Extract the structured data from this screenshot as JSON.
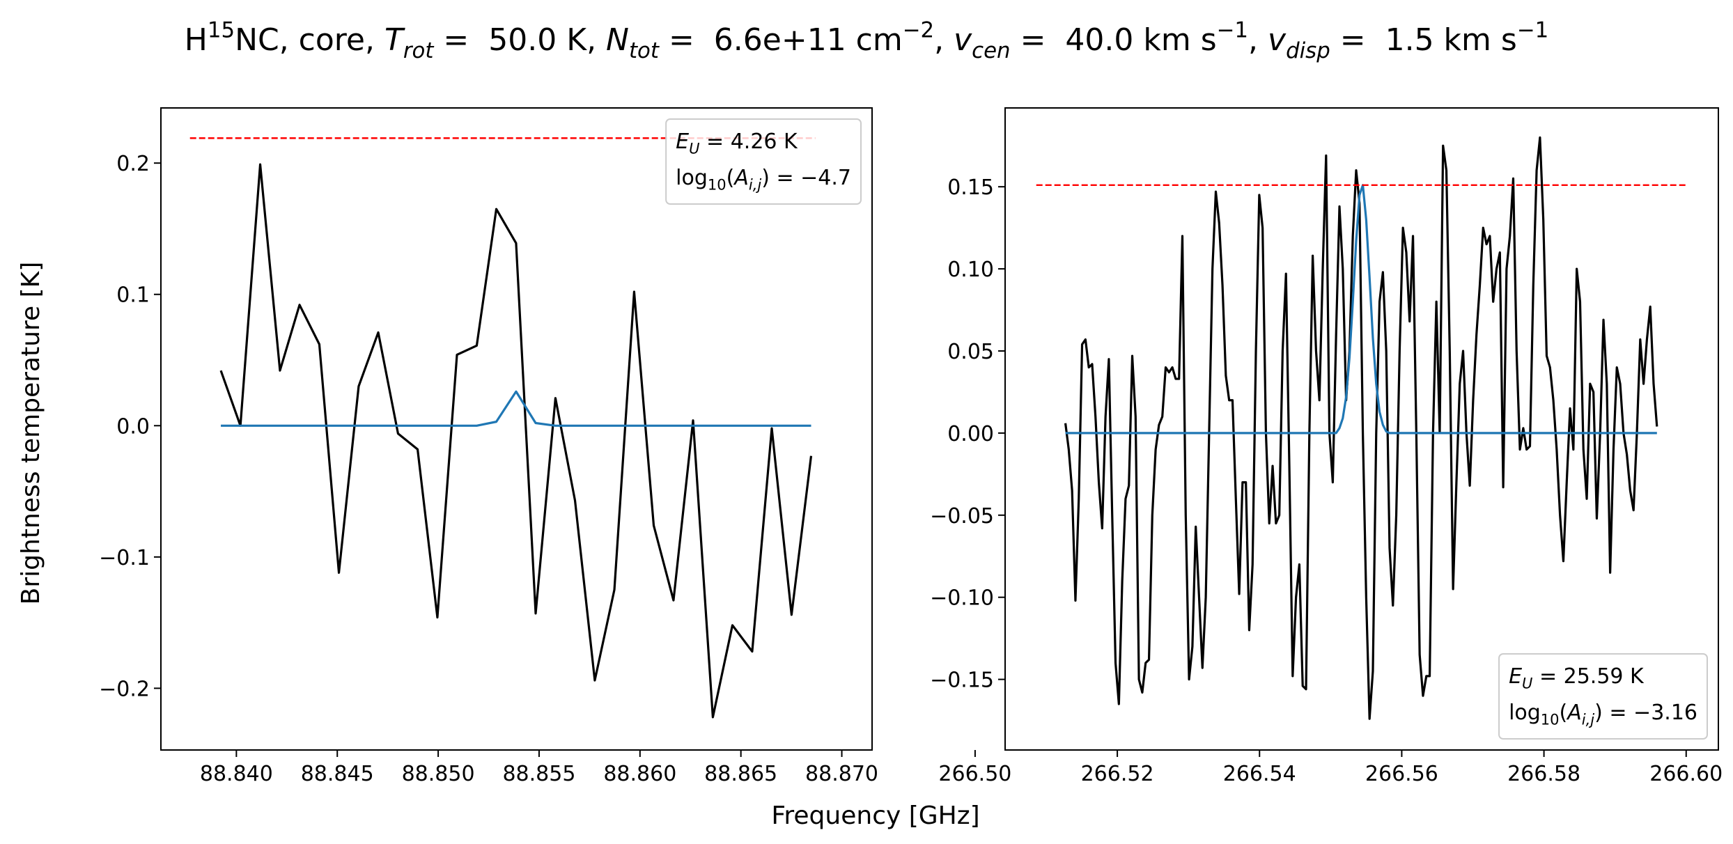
{
  "title": [
    "H",
    "15",
    "NC, core, ",
    "T",
    "rot",
    " =  50.0 K, ",
    "N",
    "tot",
    " =  6.6e+11 cm",
    "−2",
    ", ",
    "v",
    "cen",
    " =  40.0 km s",
    "−1",
    ", ",
    "v",
    "disp",
    " =  1.5 km s",
    "−1"
  ],
  "xlabel": "Frequency [GHz]",
  "ylabel": "Brightness temperature [K]",
  "chart_data": [
    {
      "type": "line",
      "annotation": [
        [
          "E",
          "U",
          " = 4.26 K"
        ],
        [
          "log",
          "10",
          "(",
          "A",
          "i,j",
          ") = −4.7"
        ]
      ],
      "legend_loc": "upper right",
      "x": [
        88.83923,
        88.8402,
        88.84118,
        88.84216,
        88.84313,
        88.84411,
        88.84508,
        88.84606,
        88.84703,
        88.84801,
        88.84898,
        88.84996,
        88.85093,
        88.85191,
        88.85288,
        88.85386,
        88.85483,
        88.85581,
        88.85678,
        88.85776,
        88.85873,
        88.85971,
        88.86068,
        88.86166,
        88.86263,
        88.86361,
        88.86458,
        88.86556,
        88.86653,
        88.86751,
        88.86848
      ],
      "series": [
        {
          "color": "#000000",
          "values": [
            0.042,
            0.0,
            0.199,
            0.042,
            0.092,
            0.062,
            -0.112,
            0.03,
            0.071,
            -0.006,
            -0.018,
            -0.146,
            0.054,
            0.061,
            0.165,
            0.139,
            -0.143,
            0.021,
            -0.057,
            -0.194,
            -0.125,
            0.102,
            -0.076,
            -0.133,
            0.004,
            -0.222,
            -0.152,
            -0.172,
            -0.002,
            -0.144,
            -0.023
          ]
        },
        {
          "color": "#1f77b4",
          "values": [
            0,
            0,
            0,
            0,
            0,
            0,
            0,
            0,
            0,
            0,
            0,
            0,
            0,
            0,
            0.003,
            0.026,
            0.002,
            0,
            0,
            0,
            0,
            0,
            0,
            0,
            0,
            0,
            0,
            0,
            0,
            0,
            0
          ]
        },
        {
          "color": "#ff0000",
          "linestyle": "dashed",
          "x": [
            88.8377,
            88.8687
          ],
          "values": [
            0.219,
            0.219
          ]
        }
      ],
      "xlim": [
        88.83626,
        88.8715
      ],
      "ylim": [
        -0.247,
        0.242
      ],
      "xticks": [
        {
          "value": 88.84,
          "label": "88.840"
        },
        88.845,
        {
          "value": 88.85,
          "label": "88.850"
        },
        88.855,
        {
          "value": 88.86,
          "label": "88.860"
        },
        88.865,
        {
          "value": 88.87,
          "label": "88.870"
        }
      ],
      "yticks": [
        {
          "value": -0.2,
          "label": "−0.2"
        },
        {
          "value": -0.1,
          "label": "−0.1"
        },
        {
          "value": 0,
          "label": "0.0"
        },
        0.1,
        0.2
      ]
    },
    {
      "type": "line",
      "annotation": [
        [
          "E",
          "U",
          " = 25.59 K"
        ],
        [
          "log",
          "10",
          "(",
          "A",
          "i,j",
          ") = −3.16"
        ]
      ],
      "legend_loc": "lower right",
      "x": [
        266.5127,
        266.51317,
        266.51364,
        266.51411,
        266.51458,
        266.51505,
        266.51552,
        266.51599,
        266.51646,
        266.51693,
        266.5174,
        266.51787,
        266.51834,
        266.51881,
        266.51928,
        266.51975,
        266.52022,
        266.52069,
        266.52116,
        266.52163,
        266.5221,
        266.52257,
        266.52304,
        266.52351,
        266.52398,
        266.52445,
        266.52492,
        266.52539,
        266.52586,
        266.52633,
        266.5268,
        266.52727,
        266.52774,
        266.52821,
        266.52868,
        266.52915,
        266.52962,
        266.53009,
        266.53056,
        266.53103,
        266.5315,
        266.53197,
        266.53244,
        266.53291,
        266.53338,
        266.53385,
        266.53432,
        266.53479,
        266.53526,
        266.53573,
        266.5362,
        266.53667,
        266.53714,
        266.53761,
        266.53808,
        266.53855,
        266.53902,
        266.53949,
        266.53996,
        266.54043,
        266.5409,
        266.54137,
        266.54184,
        266.54231,
        266.54278,
        266.54325,
        266.54372,
        266.54419,
        266.54466,
        266.54513,
        266.5456,
        266.54607,
        266.54654,
        266.54701,
        266.54748,
        266.54795,
        266.54842,
        266.54889,
        266.54936,
        266.54983,
        266.5503,
        266.55077,
        266.55124,
        266.55171,
        266.55218,
        266.55265,
        266.55312,
        266.55359,
        266.55406,
        266.55453,
        266.555,
        266.55547,
        266.55594,
        266.55641,
        266.55688,
        266.55735,
        266.55782,
        266.55829,
        266.55876,
        266.55923,
        266.5597,
        266.56017,
        266.56064,
        266.56111,
        266.56158,
        266.56205,
        266.56252,
        266.56299,
        266.56346,
        266.56393,
        266.5644,
        266.56487,
        266.56534,
        266.56581,
        266.56628,
        266.56675,
        266.56722,
        266.56769,
        266.56816,
        266.56863,
        266.5691,
        266.56957,
        266.57004,
        266.57051,
        266.57098,
        266.57145,
        266.57192,
        266.57239,
        266.57286,
        266.57333,
        266.5738,
        266.57427,
        266.57474,
        266.57521,
        266.57568,
        266.57615,
        266.57662,
        266.57709,
        266.57756,
        266.57803,
        266.5785,
        266.57897,
        266.57944,
        266.57991,
        266.58038,
        266.58085,
        266.58132,
        266.58179,
        266.58226,
        266.58273,
        266.5832,
        266.58367,
        266.58414,
        266.58461,
        266.58508,
        266.58555,
        266.58602,
        266.58649,
        266.58696,
        266.58743,
        266.5879,
        266.58837,
        266.58884,
        266.58931,
        266.58978,
        266.59025,
        266.59072,
        266.59119,
        266.59166,
        266.59213,
        266.5926,
        266.59307,
        266.59354,
        266.59401,
        266.59448,
        266.59495,
        266.59542,
        266.59589
      ],
      "series": [
        {
          "color": "#000000",
          "values": [
            0.006,
            -0.01,
            -0.035,
            -0.102,
            -0.04,
            0.054,
            0.057,
            0.04,
            0.042,
            0.01,
            -0.03,
            -0.058,
            0.01,
            0.045,
            -0.05,
            -0.14,
            -0.165,
            -0.09,
            -0.04,
            -0.032,
            0.047,
            0.01,
            -0.15,
            -0.158,
            -0.14,
            -0.138,
            -0.05,
            -0.01,
            0.005,
            0.01,
            0.04,
            0.037,
            0.04,
            0.033,
            0.033,
            0.12,
            -0.05,
            -0.15,
            -0.13,
            -0.057,
            -0.1,
            -0.143,
            -0.1,
            0.0,
            0.1,
            0.147,
            0.128,
            0.09,
            0.035,
            0.02,
            0.02,
            -0.04,
            -0.098,
            -0.03,
            -0.03,
            -0.12,
            -0.08,
            0.05,
            0.145,
            0.125,
            0.0,
            -0.055,
            -0.02,
            -0.055,
            -0.05,
            0.05,
            0.097,
            -0.02,
            -0.148,
            -0.1,
            -0.08,
            -0.154,
            -0.156,
            0.0,
            0.108,
            0.05,
            0.02,
            0.1,
            0.169,
            0.0,
            -0.03,
            0.06,
            0.138,
            0.1,
            0.02,
            0.05,
            0.12,
            0.16,
            0.14,
            0.0,
            -0.1,
            -0.174,
            -0.145,
            0.0,
            0.08,
            0.098,
            0.05,
            -0.07,
            -0.105,
            -0.05,
            0.05,
            0.125,
            0.11,
            0.068,
            0.12,
            0.0,
            -0.135,
            -0.16,
            -0.148,
            -0.148,
            0.0,
            0.08,
            0.0,
            0.175,
            0.16,
            0.05,
            -0.095,
            -0.03,
            0.03,
            0.05,
            0.0,
            -0.032,
            0.02,
            0.06,
            0.09,
            0.125,
            0.115,
            0.12,
            0.08,
            0.1,
            0.11,
            -0.033,
            0.1,
            0.12,
            0.155,
            0.05,
            -0.01,
            0.003,
            -0.01,
            -0.008,
            0.09,
            0.16,
            0.18,
            0.13,
            0.047,
            0.04,
            0.02,
            -0.01,
            -0.05,
            -0.078,
            -0.03,
            0.015,
            -0.01,
            0.1,
            0.08,
            -0.01,
            -0.04,
            0.03,
            0.025,
            -0.052,
            0.0,
            0.069,
            0.03,
            -0.085,
            -0.01,
            0.04,
            0.03,
            0.0,
            -0.013,
            -0.035,
            -0.047,
            0.0,
            0.057,
            0.03,
            0.057,
            0.077,
            0.03,
            0.004
          ]
        },
        {
          "color": "#1f77b4",
          "values": [
            0,
            0,
            0,
            0,
            0,
            0,
            0,
            0,
            0,
            0,
            0,
            0,
            0,
            0,
            0,
            0,
            0,
            0,
            0,
            0,
            0,
            0,
            0,
            0,
            0,
            0,
            0,
            0,
            0,
            0,
            0,
            0,
            0,
            0,
            0,
            0,
            0,
            0,
            0,
            0,
            0,
            0,
            0,
            0,
            0,
            0,
            0,
            0,
            0,
            0,
            0,
            0,
            0,
            0,
            0,
            0,
            0,
            0,
            0,
            0,
            0,
            0,
            0,
            0,
            0,
            0,
            0,
            0,
            0,
            0,
            0,
            0,
            0,
            0,
            0,
            0,
            0,
            0,
            0,
            0,
            0,
            0,
            0.003,
            0.009,
            0.022,
            0.046,
            0.08,
            0.117,
            0.145,
            0.151,
            0.13,
            0.095,
            0.058,
            0.03,
            0.013,
            0.005,
            0.001,
            0,
            0,
            0,
            0,
            0,
            0,
            0,
            0,
            0,
            0,
            0,
            0,
            0,
            0,
            0,
            0,
            0,
            0,
            0,
            0,
            0,
            0,
            0,
            0,
            0,
            0,
            0,
            0,
            0,
            0,
            0,
            0,
            0,
            0,
            0,
            0,
            0,
            0,
            0,
            0,
            0,
            0,
            0,
            0,
            0,
            0,
            0,
            0,
            0,
            0,
            0,
            0,
            0,
            0,
            0,
            0,
            0,
            0,
            0,
            0,
            0,
            0,
            0,
            0,
            0,
            0,
            0,
            0,
            0,
            0,
            0,
            0,
            0,
            0,
            0,
            0,
            0,
            0,
            0,
            0,
            0
          ]
        },
        {
          "color": "#ff0000",
          "linestyle": "dashed",
          "x": [
            266.5086,
            266.6
          ],
          "values": [
            0.151,
            0.151
          ]
        }
      ],
      "xlim": [
        266.50422,
        266.60453
      ],
      "ylim": [
        -0.193,
        0.198
      ],
      "xticks": [
        {
          "value": 266.5,
          "label": "266.50"
        },
        266.52,
        266.54,
        266.56,
        266.58,
        {
          "value": 266.6,
          "label": "266.60"
        }
      ],
      "yticks": [
        {
          "value": -0.15,
          "label": "−0.15"
        },
        {
          "value": -0.1,
          "label": "−0.10"
        },
        {
          "value": -0.05,
          "label": "−0.05"
        },
        {
          "value": 0,
          "label": "0.00"
        },
        0.05,
        {
          "value": 0.1,
          "label": "0.10"
        },
        0.15
      ]
    }
  ]
}
